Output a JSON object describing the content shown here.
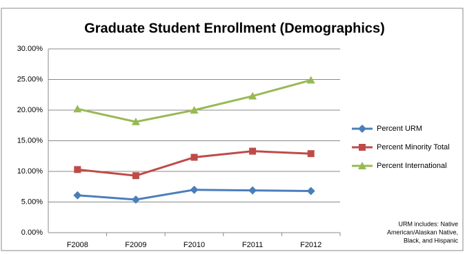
{
  "chart_data": {
    "type": "line",
    "title": "Graduate Student Enrollment (Demographics)",
    "categories": [
      "F2008",
      "F2009",
      "F2010",
      "F2011",
      "F2012"
    ],
    "series": [
      {
        "name": "Percent URM",
        "color": "#4a7ebb",
        "marker": "diamond",
        "values": [
          6.1,
          5.4,
          7.0,
          6.9,
          6.8
        ]
      },
      {
        "name": "Percent Minority Total",
        "color": "#be4b48",
        "marker": "square",
        "values": [
          10.3,
          9.3,
          12.3,
          13.3,
          12.9
        ]
      },
      {
        "name": "Percent International",
        "color": "#98b954",
        "marker": "triangle",
        "values": [
          20.2,
          18.1,
          20.0,
          22.3,
          24.9
        ]
      }
    ],
    "ylim": [
      0,
      30
    ],
    "yticks": [
      {
        "value": 0,
        "label": "0.00%"
      },
      {
        "value": 5,
        "label": "5.00%"
      },
      {
        "value": 10,
        "label": "10.00%"
      },
      {
        "value": 15,
        "label": "15.00%"
      },
      {
        "value": 20,
        "label": "20.00%"
      },
      {
        "value": 25,
        "label": "25.00%"
      },
      {
        "value": 30,
        "label": "30.00%"
      }
    ],
    "grid": true,
    "legend": "right",
    "annotation": [
      "URM includes: Native",
      "American/Alaskan Native,",
      "Black, and Hispanic"
    ]
  }
}
